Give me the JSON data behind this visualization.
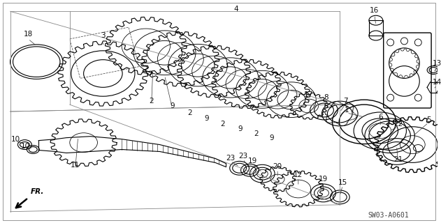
{
  "bg_color": "#ffffff",
  "line_color": "#000000",
  "lw": 0.8,
  "diagram_code": "SW03-A0601",
  "fig_width": 6.31,
  "fig_height": 3.2,
  "dpi": 100
}
